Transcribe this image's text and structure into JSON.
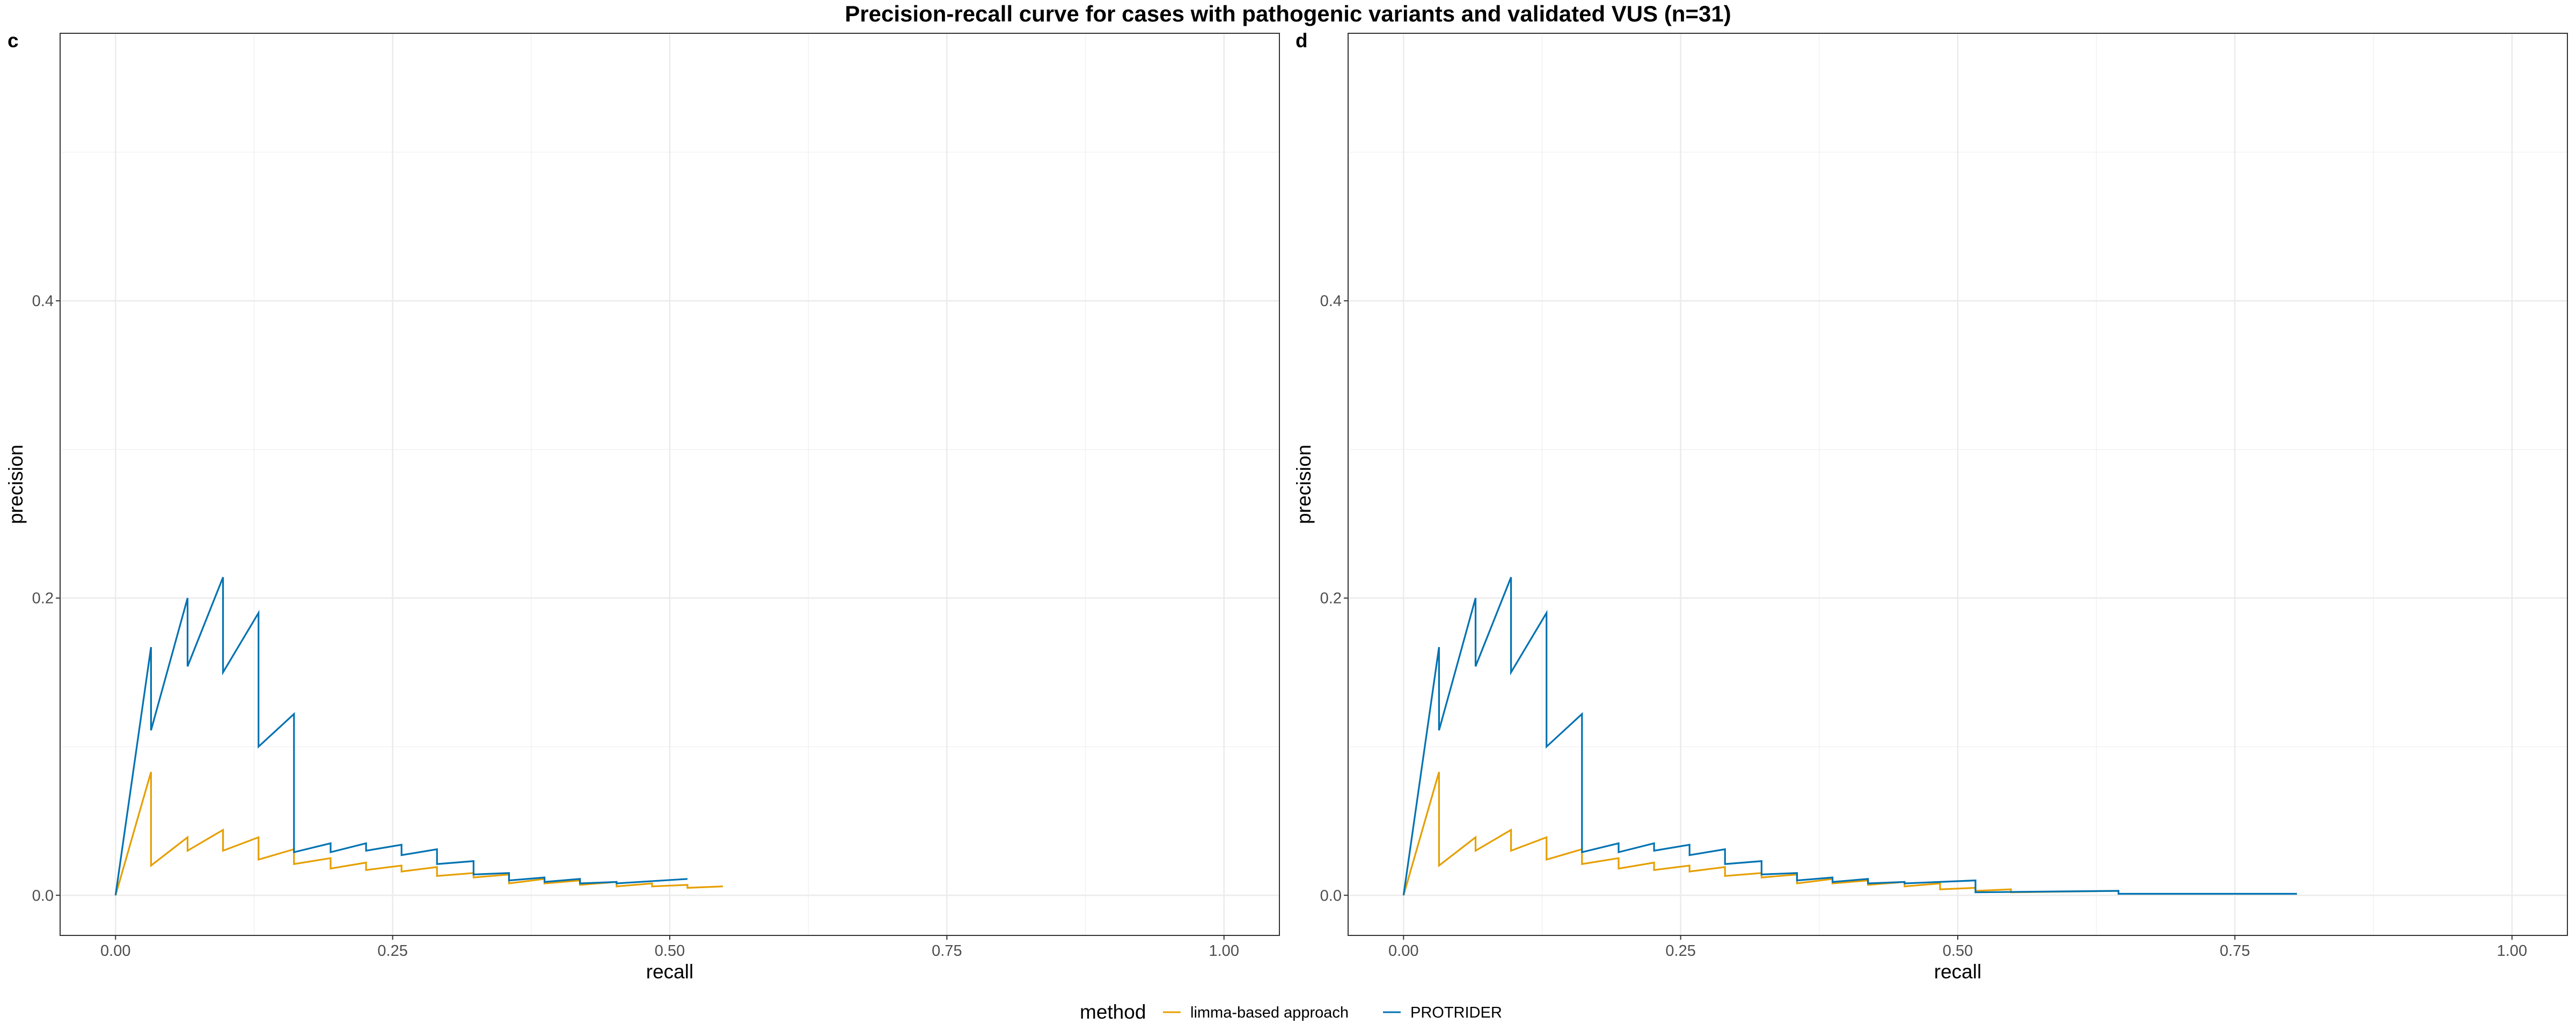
{
  "title": "Precision-recall curve for cases with pathogenic variants and validated VUS (n=31)",
  "legend": {
    "title": "method",
    "position": "bottom",
    "entries": [
      {
        "label": "limma-based approach",
        "color": "#E69F00"
      },
      {
        "label": "PROTRIDER",
        "color": "#0072B2"
      }
    ]
  },
  "chart_data": [
    {
      "type": "line",
      "panel_label": "c",
      "xlabel": "recall",
      "ylabel": "precision",
      "xlim": [
        -0.05,
        1.05
      ],
      "ylim": [
        -0.027,
        0.58
      ],
      "xticks": [
        0.0,
        0.25,
        0.5,
        0.75,
        1.0
      ],
      "xtick_labels": [
        "0.00",
        "0.25",
        "0.50",
        "0.75",
        "1.00"
      ],
      "yticks": [
        0.0,
        0.2,
        0.4
      ],
      "ytick_labels": [
        "0.0",
        "0.2",
        "0.4"
      ],
      "grid": true,
      "series": [
        {
          "name": "limma-based approach",
          "color": "#E69F00",
          "x": [
            0.0,
            0.032,
            0.032,
            0.065,
            0.065,
            0.097,
            0.097,
            0.129,
            0.129,
            0.161,
            0.161,
            0.194,
            0.194,
            0.226,
            0.226,
            0.258,
            0.258,
            0.29,
            0.29,
            0.323,
            0.323,
            0.355,
            0.355,
            0.387,
            0.387,
            0.419,
            0.419,
            0.452,
            0.452,
            0.484,
            0.484,
            0.516,
            0.516,
            0.548
          ],
          "y": [
            0.0,
            0.083,
            0.02,
            0.039,
            0.03,
            0.044,
            0.03,
            0.039,
            0.024,
            0.031,
            0.021,
            0.025,
            0.018,
            0.022,
            0.017,
            0.02,
            0.016,
            0.019,
            0.013,
            0.015,
            0.012,
            0.014,
            0.008,
            0.011,
            0.008,
            0.01,
            0.007,
            0.009,
            0.006,
            0.008,
            0.006,
            0.007,
            0.005,
            0.006
          ]
        },
        {
          "name": "PROTRIDER",
          "color": "#0072B2",
          "x": [
            0.0,
            0.032,
            0.032,
            0.065,
            0.065,
            0.097,
            0.097,
            0.129,
            0.129,
            0.161,
            0.161,
            0.194,
            0.194,
            0.226,
            0.226,
            0.258,
            0.258,
            0.29,
            0.29,
            0.323,
            0.323,
            0.355,
            0.355,
            0.387,
            0.387,
            0.419,
            0.419,
            0.452,
            0.452,
            0.516
          ],
          "y": [
            0.0,
            0.167,
            0.111,
            0.2,
            0.154,
            0.214,
            0.15,
            0.19,
            0.1,
            0.122,
            0.029,
            0.035,
            0.029,
            0.035,
            0.03,
            0.034,
            0.027,
            0.031,
            0.021,
            0.023,
            0.014,
            0.015,
            0.01,
            0.012,
            0.009,
            0.011,
            0.008,
            0.009,
            0.008,
            0.011
          ]
        }
      ]
    },
    {
      "type": "line",
      "panel_label": "d",
      "xlabel": "recall",
      "ylabel": "precision",
      "xlim": [
        -0.05,
        1.05
      ],
      "ylim": [
        -0.027,
        0.58
      ],
      "xticks": [
        0.0,
        0.25,
        0.5,
        0.75,
        1.0
      ],
      "xtick_labels": [
        "0.00",
        "0.25",
        "0.50",
        "0.75",
        "1.00"
      ],
      "yticks": [
        0.0,
        0.2,
        0.4
      ],
      "ytick_labels": [
        "0.0",
        "0.2",
        "0.4"
      ],
      "grid": true,
      "series": [
        {
          "name": "limma-based approach",
          "color": "#E69F00",
          "x": [
            0.0,
            0.032,
            0.032,
            0.065,
            0.065,
            0.097,
            0.097,
            0.129,
            0.129,
            0.161,
            0.161,
            0.194,
            0.194,
            0.226,
            0.226,
            0.258,
            0.258,
            0.29,
            0.29,
            0.323,
            0.323,
            0.355,
            0.355,
            0.387,
            0.387,
            0.419,
            0.419,
            0.452,
            0.452,
            0.484,
            0.484,
            0.516,
            0.516,
            0.548,
            0.548,
            0.645
          ],
          "y": [
            0.0,
            0.083,
            0.02,
            0.039,
            0.03,
            0.044,
            0.03,
            0.039,
            0.024,
            0.031,
            0.021,
            0.025,
            0.018,
            0.022,
            0.017,
            0.02,
            0.016,
            0.019,
            0.013,
            0.015,
            0.012,
            0.014,
            0.008,
            0.011,
            0.008,
            0.01,
            0.007,
            0.009,
            0.006,
            0.008,
            0.004,
            0.005,
            0.003,
            0.004,
            0.002,
            0.003
          ]
        },
        {
          "name": "PROTRIDER",
          "color": "#0072B2",
          "x": [
            0.0,
            0.032,
            0.032,
            0.065,
            0.065,
            0.097,
            0.097,
            0.129,
            0.129,
            0.161,
            0.161,
            0.194,
            0.194,
            0.226,
            0.226,
            0.258,
            0.258,
            0.29,
            0.29,
            0.323,
            0.323,
            0.355,
            0.355,
            0.387,
            0.387,
            0.419,
            0.419,
            0.452,
            0.452,
            0.516,
            0.516,
            0.645,
            0.645,
            0.806
          ],
          "y": [
            0.0,
            0.167,
            0.111,
            0.2,
            0.154,
            0.214,
            0.15,
            0.19,
            0.1,
            0.122,
            0.029,
            0.035,
            0.029,
            0.035,
            0.03,
            0.034,
            0.027,
            0.031,
            0.021,
            0.023,
            0.014,
            0.015,
            0.01,
            0.012,
            0.009,
            0.011,
            0.008,
            0.009,
            0.008,
            0.01,
            0.002,
            0.003,
            0.001,
            0.001
          ]
        }
      ]
    }
  ]
}
